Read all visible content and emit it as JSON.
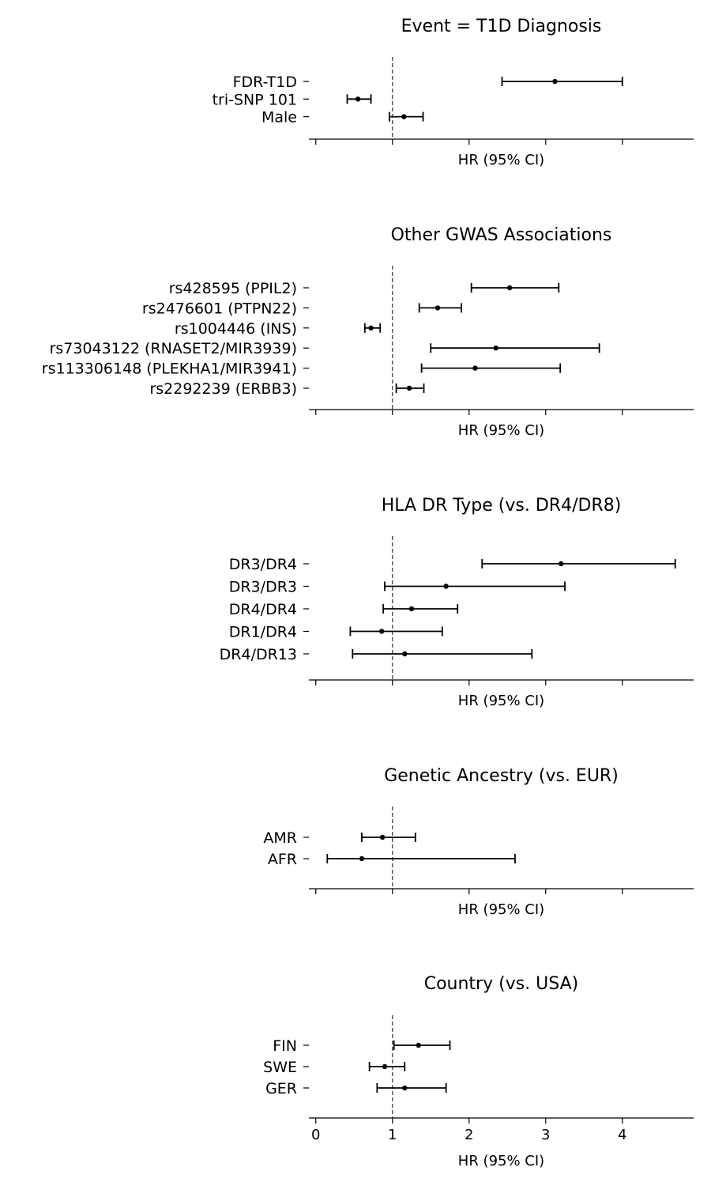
{
  "chart_data": [
    {
      "type": "forest",
      "title": "Event = T1D Diagnosis",
      "xlabel": "HR (95% CI)",
      "xlim": [
        -0.09,
        4.93
      ],
      "xticks": [
        0,
        1,
        2,
        3,
        4
      ],
      "show_tick_labels": false,
      "reference_line": 1,
      "rows": [
        {
          "label": "FDR-T1D",
          "hr": 3.12,
          "lo": 2.43,
          "hi": 4.0
        },
        {
          "label": "tri-SNP 101",
          "hr": 0.55,
          "lo": 0.41,
          "hi": 0.72
        },
        {
          "label": "Male",
          "hr": 1.15,
          "lo": 0.96,
          "hi": 1.4
        }
      ]
    },
    {
      "type": "forest",
      "title": "Other GWAS Associations",
      "xlabel": "HR (95% CI)",
      "xlim": [
        -0.09,
        4.93
      ],
      "xticks": [
        0,
        1,
        2,
        3,
        4
      ],
      "show_tick_labels": false,
      "reference_line": 1,
      "rows": [
        {
          "label": "rs428595 (PPIL2)",
          "hr": 2.53,
          "lo": 2.03,
          "hi": 3.17
        },
        {
          "label": "rs2476601 (PTPN22)",
          "hr": 1.59,
          "lo": 1.35,
          "hi": 1.9
        },
        {
          "label": "rs1004446 (INS)",
          "hr": 0.72,
          "lo": 0.64,
          "hi": 0.84
        },
        {
          "label": "rs73043122 (RNASET2/MIR3939)",
          "hr": 2.35,
          "lo": 1.5,
          "hi": 3.7
        },
        {
          "label": "rs113306148 (PLEKHA1/MIR3941)",
          "hr": 2.08,
          "lo": 1.38,
          "hi": 3.19
        },
        {
          "label": "rs2292239 (ERBB3)",
          "hr": 1.22,
          "lo": 1.05,
          "hi": 1.41
        }
      ]
    },
    {
      "type": "forest",
      "title": "HLA DR Type (vs. DR4/DR8)",
      "xlabel": "HR (95% CI)",
      "xlim": [
        -0.09,
        4.93
      ],
      "xticks": [
        0,
        1,
        2,
        3,
        4
      ],
      "show_tick_labels": false,
      "reference_line": 1,
      "rows": [
        {
          "label": "DR3/DR4",
          "hr": 3.2,
          "lo": 2.17,
          "hi": 4.69
        },
        {
          "label": "DR3/DR3",
          "hr": 1.7,
          "lo": 0.9,
          "hi": 3.25
        },
        {
          "label": "DR4/DR4",
          "hr": 1.25,
          "lo": 0.88,
          "hi": 1.85
        },
        {
          "label": "DR1/DR4",
          "hr": 0.86,
          "lo": 0.45,
          "hi": 1.65
        },
        {
          "label": "DR4/DR13",
          "hr": 1.16,
          "lo": 0.48,
          "hi": 2.82
        }
      ]
    },
    {
      "type": "forest",
      "title": "Genetic Ancestry (vs. EUR)",
      "xlabel": "HR (95% CI)",
      "xlim": [
        -0.09,
        4.93
      ],
      "xticks": [
        0,
        1,
        2,
        3,
        4
      ],
      "show_tick_labels": false,
      "reference_line": 1,
      "rows": [
        {
          "label": "AMR",
          "hr": 0.87,
          "lo": 0.6,
          "hi": 1.3
        },
        {
          "label": "AFR",
          "hr": 0.6,
          "lo": 0.15,
          "hi": 2.6
        }
      ]
    },
    {
      "type": "forest",
      "title": "Country (vs. USA)",
      "xlabel": "HR (95% CI)",
      "xlim": [
        -0.09,
        4.93
      ],
      "xticks": [
        0,
        1,
        2,
        3,
        4
      ],
      "show_tick_labels": true,
      "reference_line": 1,
      "rows": [
        {
          "label": "FIN",
          "hr": 1.34,
          "lo": 1.02,
          "hi": 1.75
        },
        {
          "label": "SWE",
          "hr": 0.9,
          "lo": 0.7,
          "hi": 1.16
        },
        {
          "label": "GER",
          "hr": 1.16,
          "lo": 0.8,
          "hi": 1.7
        }
      ]
    }
  ]
}
